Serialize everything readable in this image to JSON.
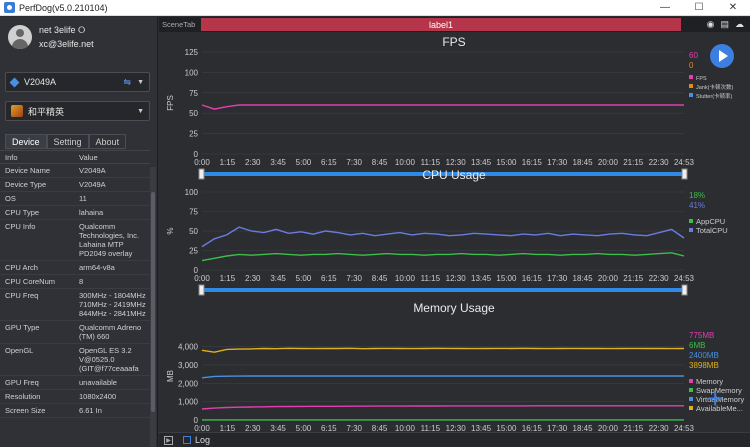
{
  "window": {
    "title": "PerfDog(v5.0.210104)"
  },
  "user": {
    "name": "net 3elife ⭘",
    "email": "xc@3elife.net"
  },
  "device_select": {
    "value": "V2049A"
  },
  "app_select": {
    "value": "和平精英"
  },
  "tabs": [
    "Device",
    "Setting",
    "About"
  ],
  "info_table": {
    "headers": [
      "Info",
      "Value"
    ],
    "rows": [
      [
        "Device Name",
        "V2049A"
      ],
      [
        "Device Type",
        "V2049A"
      ],
      [
        "OS",
        "11"
      ],
      [
        "CPU Type",
        "lahaina"
      ],
      [
        "CPU Info",
        "Qualcomm Technologies, Inc. Lahaina MTP PD2049 overlay"
      ],
      [
        "CPU Arch",
        "arm64-v8a"
      ],
      [
        "CPU CoreNum",
        "8"
      ],
      [
        "CPU Freq",
        "300MHz - 1804MHz 710MHz - 2419MHz 844MHz - 2841MHz"
      ],
      [
        "GPU Type",
        "Qualcomm Adreno (TM) 660"
      ],
      [
        "OpenGL",
        "OpenGL ES 3.2 V@0525.0 (GIT@f77ceaaafa"
      ],
      [
        "GPU Freq",
        "unavailable"
      ],
      [
        "Resolution",
        "1080x2400"
      ],
      [
        "Screen Size",
        "6.61 In"
      ]
    ]
  },
  "scene": {
    "tab_label": "SceneTab",
    "label": "label1"
  },
  "log": {
    "label": "Log"
  },
  "time_ticks": [
    "0:00",
    "1:15",
    "2:30",
    "3:45",
    "5:00",
    "6:15",
    "7:30",
    "8:45",
    "10:00",
    "11:15",
    "12:30",
    "13:45",
    "15:00",
    "16:15",
    "17:30",
    "18:45",
    "20:00",
    "21:15",
    "22:30",
    "24:53"
  ],
  "chart_data": [
    {
      "type": "line",
      "title": "FPS",
      "ylabel": "FPS",
      "ylim": [
        0,
        125
      ],
      "yticks": [
        "125",
        "100",
        "75",
        "50",
        "25",
        "0"
      ],
      "current_values": [
        {
          "text": "60",
          "color": "#e040b0"
        },
        {
          "text": "0",
          "color": "#e08a20"
        }
      ],
      "series": [
        {
          "name": "FPS",
          "color": "#e040b0",
          "values": [
            60,
            55,
            58,
            60,
            60,
            60,
            60,
            60,
            60,
            60,
            60,
            60,
            60,
            60,
            60,
            60,
            60,
            60,
            60,
            60,
            60,
            60,
            60,
            60,
            60,
            60,
            60,
            60,
            60,
            60,
            60,
            60,
            60,
            60,
            60,
            60,
            60,
            60,
            60,
            60
          ]
        },
        {
          "name": "Jank(卡顿次数)",
          "color": "#e08a20",
          "values": []
        },
        {
          "name": "Stutter(卡顿率)",
          "color": "#4a90e2",
          "values": []
        }
      ]
    },
    {
      "type": "line",
      "title": "CPU Usage",
      "ylabel": "%",
      "ylim": [
        0,
        100
      ],
      "yticks": [
        "100",
        "75",
        "50",
        "25",
        "0"
      ],
      "current_values": [
        {
          "text": "18%",
          "color": "#3cbf4a"
        },
        {
          "text": "41%",
          "color": "#6b7ce0"
        }
      ],
      "series": [
        {
          "name": "AppCPU",
          "color": "#3cbf4a",
          "values": [
            12,
            15,
            18,
            20,
            19,
            20,
            21,
            20,
            19,
            20,
            20,
            21,
            20,
            19,
            20,
            21,
            20,
            20,
            19,
            20,
            20,
            21,
            20,
            20,
            19,
            20,
            21,
            20,
            20,
            19,
            20,
            20,
            21,
            20,
            20,
            19,
            20,
            21,
            22,
            18
          ]
        },
        {
          "name": "TotalCPU",
          "color": "#6b7ce0",
          "values": [
            30,
            40,
            45,
            55,
            50,
            48,
            52,
            47,
            49,
            46,
            50,
            48,
            45,
            47,
            44,
            46,
            48,
            45,
            47,
            46,
            44,
            45,
            47,
            46,
            45,
            44,
            46,
            45,
            47,
            44,
            46,
            45,
            44,
            46,
            47,
            45,
            44,
            48,
            52,
            41
          ]
        }
      ]
    },
    {
      "type": "line",
      "title": "Memory Usage",
      "ylabel": "MB",
      "ylim": [
        0,
        4800
      ],
      "yticks": [
        "4,000",
        "3,000",
        "2,000",
        "1,000",
        "0"
      ],
      "current_values": [
        {
          "text": "775MB",
          "color": "#e040b0"
        },
        {
          "text": "6MB",
          "color": "#3cbf4a"
        },
        {
          "text": "2400MB",
          "color": "#4a90e2"
        },
        {
          "text": "3898MB",
          "color": "#e0b020"
        }
      ],
      "series": [
        {
          "name": "Memory",
          "color": "#e040b0",
          "values": [
            600,
            650,
            680,
            700,
            710,
            720,
            730,
            735,
            740,
            745,
            750,
            750,
            752,
            755,
            757,
            760,
            760,
            762,
            765,
            765,
            767,
            768,
            769,
            770,
            770,
            771,
            771,
            772,
            772,
            773,
            773,
            773,
            774,
            774,
            774,
            775,
            775,
            775,
            775,
            775
          ]
        },
        {
          "name": "SwapMemory",
          "color": "#3cbf4a",
          "values": [
            6,
            6,
            6,
            6,
            6,
            6,
            6,
            6,
            6,
            6,
            6,
            6,
            6,
            6,
            6,
            6,
            6,
            6,
            6,
            6,
            6,
            6,
            6,
            6,
            6,
            6,
            6,
            6,
            6,
            6,
            6,
            6,
            6,
            6,
            6,
            6,
            6,
            6,
            6,
            6
          ]
        },
        {
          "name": "VirtualMemory",
          "color": "#4a90e2",
          "values": [
            2300,
            2380,
            2390,
            2395,
            2398,
            2400,
            2400,
            2400,
            2400,
            2400,
            2400,
            2400,
            2400,
            2400,
            2400,
            2400,
            2400,
            2400,
            2400,
            2400,
            2400,
            2400,
            2400,
            2400,
            2400,
            2400,
            2400,
            2400,
            2400,
            2400,
            2400,
            2400,
            2400,
            2400,
            2400,
            2400,
            2400,
            2400,
            2400,
            2400
          ]
        },
        {
          "name": "AvailableMe...",
          "color": "#e0b020",
          "values": [
            3800,
            3700,
            3850,
            3870,
            3880,
            3900,
            3890,
            3910,
            3900,
            3895,
            3905,
            3900,
            3910,
            3890,
            3900,
            3905,
            3900,
            3895,
            3900,
            3910,
            3905,
            3900,
            3895,
            3900,
            3905,
            3900,
            3910,
            3900,
            3895,
            3900,
            3905,
            3900,
            3900,
            3895,
            3900,
            3905,
            3900,
            3900,
            3895,
            3898
          ]
        }
      ]
    }
  ]
}
